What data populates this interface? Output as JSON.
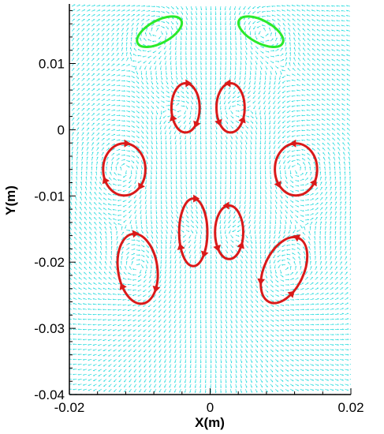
{
  "chart_data": {
    "type": "vector-field",
    "xlabel": "X(m)",
    "ylabel": "Y(m)",
    "xlim": [
      -0.02,
      0.02
    ],
    "ylim": [
      -0.04,
      0.019
    ],
    "xticks": [
      {
        "value": -0.02,
        "label": "-0.02"
      },
      {
        "value": 0,
        "label": "0"
      },
      {
        "value": 0.02,
        "label": "0.02"
      }
    ],
    "yticks": [
      {
        "value": 0.01,
        "label": "0.01"
      },
      {
        "value": 0,
        "label": "0"
      },
      {
        "value": -0.01,
        "label": "-0.01"
      },
      {
        "value": -0.02,
        "label": "-0.02"
      },
      {
        "value": -0.03,
        "label": "-0.03"
      },
      {
        "value": -0.04,
        "label": "-0.04"
      }
    ],
    "colors": {
      "vectors": "#19d9dc",
      "streamline_red": "#d91a1a",
      "streamline_green": "#2bea2b",
      "axis": "#000000"
    },
    "streamlines": [
      {
        "color": "green",
        "center": [
          -0.0072,
          0.0148
        ],
        "rx": 0.0035,
        "ry": 0.0016,
        "tilt": -28,
        "arrows": false
      },
      {
        "color": "green",
        "center": [
          0.0072,
          0.0148
        ],
        "rx": 0.0035,
        "ry": 0.0016,
        "tilt": 28,
        "arrows": false
      },
      {
        "color": "red",
        "center": [
          -0.0035,
          0.0033
        ],
        "rx": 0.002,
        "ry": 0.0035,
        "tilt": 0,
        "arrows": true
      },
      {
        "color": "red",
        "center": [
          0.0029,
          0.0033
        ],
        "rx": 0.002,
        "ry": 0.0035,
        "tilt": 0,
        "arrows": true
      },
      {
        "color": "red",
        "center": [
          -0.0122,
          -0.006
        ],
        "rx": 0.003,
        "ry": 0.0037,
        "tilt": 0,
        "arrows": true
      },
      {
        "color": "red",
        "center": [
          0.0122,
          -0.006
        ],
        "rx": 0.003,
        "ry": 0.0037,
        "tilt": 0,
        "arrows": true
      },
      {
        "color": "red",
        "center": [
          -0.0024,
          -0.0155
        ],
        "rx": 0.002,
        "ry": 0.0048,
        "tilt": 0,
        "arrows": true
      },
      {
        "color": "red",
        "center": [
          0.0027,
          -0.0155
        ],
        "rx": 0.002,
        "ry": 0.0038,
        "tilt": 0,
        "arrows": true
      },
      {
        "color": "red",
        "center": [
          -0.0103,
          -0.021
        ],
        "rx": 0.0028,
        "ry": 0.005,
        "tilt": -8,
        "arrows": true
      },
      {
        "color": "red",
        "center": [
          0.0105,
          -0.0212
        ],
        "rx": 0.0028,
        "ry": 0.005,
        "tilt": 25,
        "arrows": true
      }
    ]
  }
}
